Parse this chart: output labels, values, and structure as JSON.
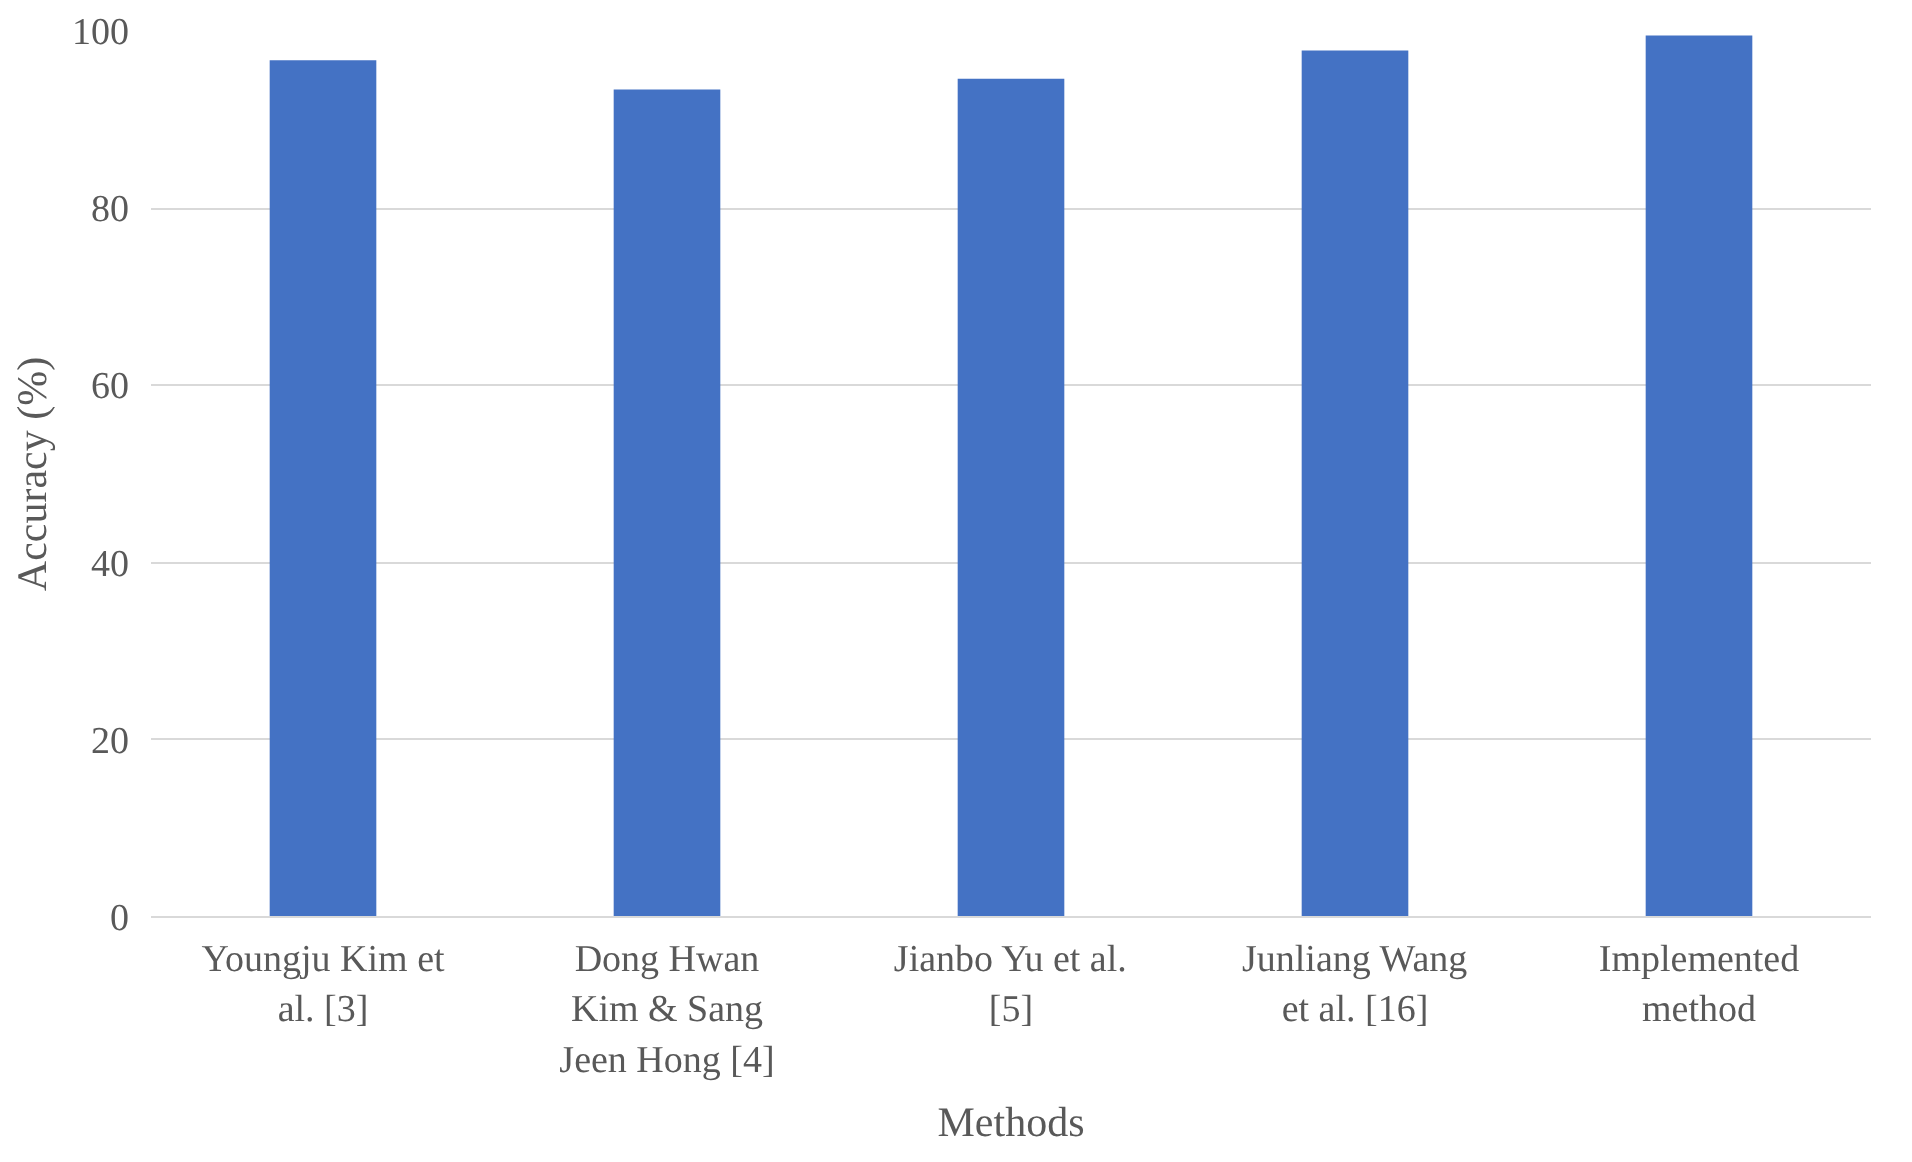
{
  "chart_data": {
    "type": "bar",
    "xlabel": "Methods",
    "ylabel": "Accuracy (%)",
    "categories": [
      "Youngju Kim et\nal. [3]",
      "Dong Hwan\nKim & Sang\nJeen Hong [4]",
      "Jianbo Yu et al.\n[5]",
      "Junliang Wang\net al. [16]",
      "Implemented\nmethod"
    ],
    "values": [
      96.7,
      93.4,
      94.6,
      97.8,
      99.5
    ],
    "color": "#4472c4",
    "ylim": [
      0,
      100
    ],
    "yticks": [
      0,
      20,
      40,
      60,
      80,
      100
    ],
    "grid": "y"
  }
}
